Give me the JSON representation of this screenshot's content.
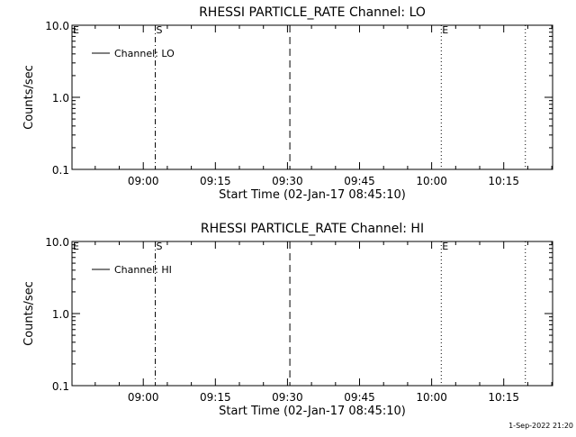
{
  "footer": {
    "timestamp": "1-Sep-2022 21:20"
  },
  "chart_data": [
    {
      "type": "line",
      "title": "RHESSI PARTICLE_RATE Channel: LO",
      "xlabel": "Start Time (02-Jan-17 08:45:10)",
      "ylabel": "Counts/sec",
      "y_scale": "log",
      "ylim": [
        0.1,
        10.0
      ],
      "y_ticks": [
        "0.1",
        "1.0",
        "10.0"
      ],
      "xlim": [
        "08:45:10",
        "10:25:10"
      ],
      "x_ticks": [
        "09:00",
        "09:15",
        "09:30",
        "09:45",
        "10:00",
        "10:15"
      ],
      "legend": {
        "placement": "top-left",
        "entries": [
          "Channel: LO"
        ]
      },
      "series": [
        {
          "name": "Channel: LO",
          "values": []
        }
      ],
      "markers": [
        {
          "label": "E",
          "time": "08:45:10",
          "style": "none"
        },
        {
          "label": "S",
          "time": "09:02:30",
          "style": "dashdot"
        },
        {
          "label": "",
          "time": "09:30:30",
          "style": "dashed"
        },
        {
          "label": "E",
          "time": "10:02:00",
          "style": "dotted"
        },
        {
          "label": "",
          "time": "10:19:30",
          "style": "dotted"
        }
      ]
    },
    {
      "type": "line",
      "title": "RHESSI PARTICLE_RATE Channel: HI",
      "xlabel": "Start Time (02-Jan-17 08:45:10)",
      "ylabel": "Counts/sec",
      "y_scale": "log",
      "ylim": [
        0.1,
        10.0
      ],
      "y_ticks": [
        "0.1",
        "1.0",
        "10.0"
      ],
      "xlim": [
        "08:45:10",
        "10:25:10"
      ],
      "x_ticks": [
        "09:00",
        "09:15",
        "09:30",
        "09:45",
        "10:00",
        "10:15"
      ],
      "legend": {
        "placement": "top-left",
        "entries": [
          "Channel: HI"
        ]
      },
      "series": [
        {
          "name": "Channel: HI",
          "values": []
        }
      ],
      "markers": [
        {
          "label": "E",
          "time": "08:45:10",
          "style": "none"
        },
        {
          "label": "S",
          "time": "09:02:30",
          "style": "dashdot"
        },
        {
          "label": "",
          "time": "09:30:30",
          "style": "dashed"
        },
        {
          "label": "E",
          "time": "10:02:00",
          "style": "dotted"
        },
        {
          "label": "",
          "time": "10:19:30",
          "style": "dotted"
        }
      ]
    }
  ]
}
